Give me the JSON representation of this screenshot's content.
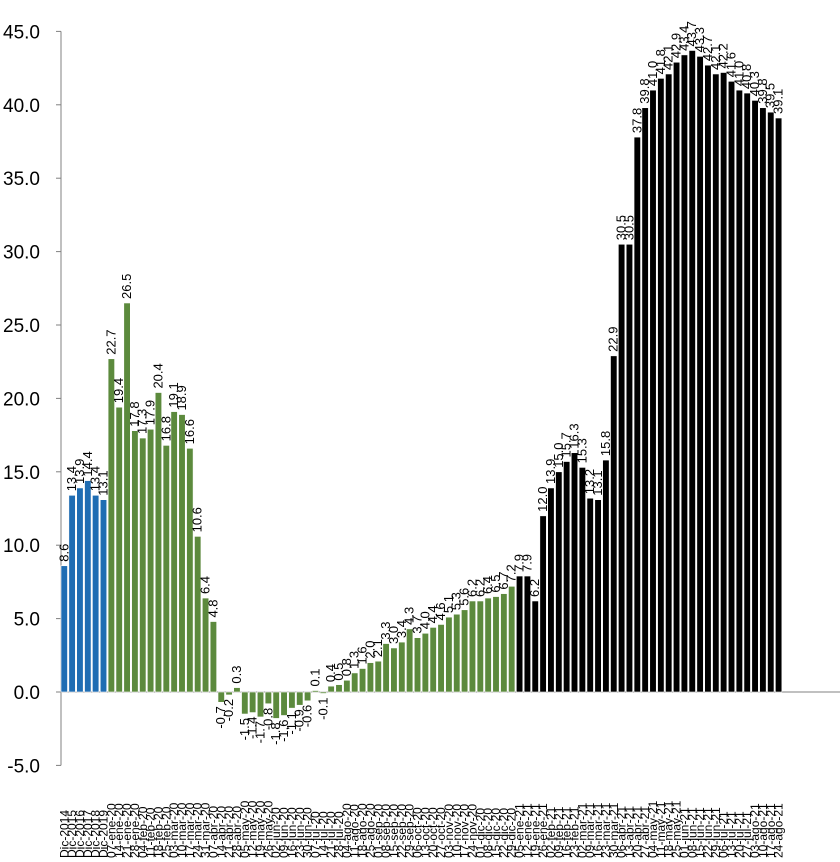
{
  "chart_data": {
    "type": "bar",
    "title": "",
    "xlabel": "",
    "ylabel": "",
    "ylim": [
      -5.0,
      45.0
    ],
    "yticks": [
      "45.0",
      "40.0",
      "35.0",
      "30.0",
      "25.0",
      "20.0",
      "15.0",
      "10.0",
      "5.0",
      "0.0",
      "-5.0"
    ],
    "grid": false,
    "colors": {
      "period1": "#1f6db3",
      "period2": "#5c8a3d",
      "period3": "#000000"
    },
    "categories": [
      "Dic-2014",
      "Dic-2015",
      "Dic-2016",
      "Dic-2017",
      "Dic-2018",
      "Dic-2019",
      "07-ene-20",
      "14-ene-20",
      "21-ene-20",
      "28-ene-20",
      "04-feb-20",
      "11-feb-20",
      "18-feb-20",
      "25-feb-20",
      "03-mar-20",
      "10-mar-20",
      "17-mar-20",
      "24-mar-20",
      "31-mar-20",
      "07-abr-20",
      "14-abr-20",
      "21-abr-20",
      "28-abr-20",
      "05-may-20",
      "12-may-20",
      "19-may-20",
      "26-may-20",
      "02-jun-20",
      "09-jun-20",
      "16-jun-20",
      "23-jun-20",
      "30-jun-20",
      "07-jul-20",
      "14-jul-20",
      "21-jul-20",
      "28-jul-20",
      "04-ago-20",
      "11-ago-20",
      "18-ago-20",
      "25-ago-20",
      "01-sep-20",
      "08-sep-20",
      "15-sep-20",
      "22-sep-20",
      "29-sep-20",
      "06-oct-20",
      "13-oct-20",
      "20-oct-20",
      "27-oct-20",
      "03-nov-20",
      "10-nov-20",
      "17-nov-20",
      "24-nov-20",
      "01-dic-20",
      "08-dic-20",
      "15-dic-20",
      "22-dic-20",
      "29-dic-20",
      "05-ene-21",
      "12-ene-21",
      "19-ene-21",
      "26-ene-21",
      "02-feb-21",
      "09-feb-21",
      "16-feb-21",
      "23-feb-21",
      "02-mar-21",
      "09-mar-21",
      "16-mar-21",
      "23-mar-21",
      "30-mar-21",
      "06-abr-21",
      "13-abr-21",
      "20-abr-21",
      "27-abr-21",
      "04-may-21",
      "11-may-21",
      "18-may-21",
      "25-may-21",
      "01-jun-21",
      "08-jun-21",
      "15-jun-21",
      "22-jun-21",
      "29-jun-21",
      "06-jul-21",
      "13-jul-21",
      "20-jul-21",
      "27-jul-21",
      "03-ago-21",
      "10-ago-21",
      "17-ago-21",
      "24-ago-21"
    ],
    "values": [
      8.6,
      13.4,
      13.9,
      14.4,
      13.4,
      13.1,
      22.7,
      19.4,
      26.5,
      17.8,
      17.3,
      17.9,
      20.4,
      16.8,
      19.1,
      18.9,
      16.6,
      10.6,
      6.4,
      4.8,
      -0.7,
      -0.2,
      0.3,
      -1.5,
      -1.4,
      -1.7,
      -0.8,
      -1.8,
      -1.6,
      -1.1,
      -0.9,
      -0.6,
      0.1,
      -0.1,
      0.4,
      0.5,
      0.8,
      1.3,
      1.6,
      2.0,
      2.1,
      3.3,
      3.0,
      3.4,
      4.3,
      3.7,
      4.0,
      4.4,
      4.6,
      5.1,
      5.3,
      5.6,
      6.2,
      6.2,
      6.4,
      6.5,
      6.7,
      7.2,
      7.9,
      7.9,
      6.2,
      12.0,
      13.9,
      15.0,
      15.7,
      16.3,
      15.3,
      13.2,
      13.1,
      15.8,
      22.9,
      30.5,
      30.5,
      37.8,
      39.8,
      41.0,
      41.8,
      42.1,
      42.9,
      43.4,
      43.7,
      43.3,
      42.7,
      42.1,
      42.2,
      41.6,
      41.0,
      40.8,
      40.3,
      39.8,
      39.5,
      39.1
    ],
    "periods": [
      6,
      52,
      34
    ]
  }
}
